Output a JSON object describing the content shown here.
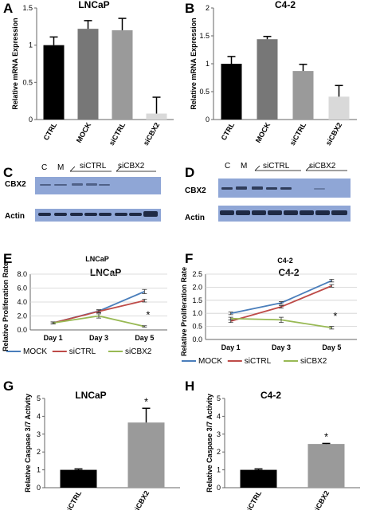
{
  "panel_labels": [
    "A",
    "B",
    "C",
    "D",
    "E",
    "F",
    "G",
    "H"
  ],
  "colors": {
    "black": "#000000",
    "dark_gray": "#777777",
    "mid_gray": "#9a9a9a",
    "light_gray": "#d9d9d9",
    "blot_bg": "#8fa6d6",
    "mock": "#4a7ebb",
    "sictrl": "#be4b48",
    "sicbx2": "#98b954"
  },
  "blots": {
    "C": {
      "lanes": [
        "C",
        "M",
        "siCTRL",
        "siCBX2"
      ],
      "rows": [
        "CBX2",
        "Actin"
      ]
    },
    "D": {
      "lanes": [
        "C",
        "M",
        "siCTRL",
        "siCBX2"
      ],
      "rows": [
        "CBX2",
        "Actin"
      ]
    }
  },
  "chart_data": [
    {
      "id": "A",
      "type": "bar",
      "title": "LNCaP",
      "ylabel": "Relative mRNA Expression",
      "categories": [
        "CTRL",
        "MOCK",
        "siCTRL",
        "siCBX2"
      ],
      "values": [
        1.0,
        1.22,
        1.2,
        0.08
      ],
      "errors": [
        0.11,
        0.11,
        0.16,
        0.22
      ],
      "ylim": [
        0,
        1.5
      ],
      "yticks": [
        "0",
        "0.5",
        "1",
        "1.5"
      ],
      "yticks_num": [
        0,
        0.5,
        1,
        1.5
      ],
      "bar_colors": [
        "#000000",
        "#777777",
        "#9a9a9a",
        "#d9d9d9"
      ]
    },
    {
      "id": "B",
      "type": "bar",
      "title": "C4-2",
      "ylabel": "Relative mRNA Expression",
      "categories": [
        "CTRL",
        "MOCK",
        "siCTRL",
        "siCBX2"
      ],
      "values": [
        1.0,
        1.44,
        0.87,
        0.41
      ],
      "errors": [
        0.13,
        0.05,
        0.12,
        0.2
      ],
      "ylim": [
        0,
        2
      ],
      "yticks": [
        "0",
        "0.5",
        "1",
        "1.5",
        "2"
      ],
      "yticks_num": [
        0,
        0.5,
        1,
        1.5,
        2
      ],
      "bar_colors": [
        "#000000",
        "#777777",
        "#9a9a9a",
        "#d9d9d9"
      ]
    },
    {
      "id": "E",
      "type": "line",
      "header": "LNCaP",
      "title": "LNCaP",
      "ylabel": "Relative Proliferation Rate",
      "x": [
        "Day 1",
        "Day 3",
        "Day 5"
      ],
      "series": [
        {
          "name": "MOCK",
          "values": [
            1.0,
            2.7,
            5.5
          ],
          "errors": [
            0.15,
            0.2,
            0.3
          ]
        },
        {
          "name": "siCTRL",
          "values": [
            1.0,
            2.65,
            4.2
          ],
          "errors": [
            0.15,
            0.2,
            0.2
          ]
        },
        {
          "name": "siCBX2",
          "values": [
            1.0,
            2.0,
            0.5
          ],
          "errors": [
            0.15,
            0.3,
            0.1
          ]
        }
      ],
      "ylim": [
        0,
        8
      ],
      "yticks": [
        "0.0",
        "2.0",
        "4.0",
        "6.0",
        "8.0"
      ],
      "yticks_num": [
        0,
        2,
        4,
        6,
        8
      ],
      "annotation": "*"
    },
    {
      "id": "F",
      "type": "line",
      "header": "C4-2",
      "title": "C4-2",
      "ylabel": "Relative Proliferation Rate",
      "x": [
        "Day 1",
        "Day 3",
        "Day 5"
      ],
      "series": [
        {
          "name": "MOCK",
          "values": [
            1.0,
            1.4,
            2.25
          ],
          "errors": [
            0.05,
            0.05,
            0.05
          ]
        },
        {
          "name": "siCTRL",
          "values": [
            0.7,
            1.25,
            2.05
          ],
          "errors": [
            0.05,
            0.05,
            0.05
          ]
        },
        {
          "name": "siCBX2",
          "values": [
            0.8,
            0.75,
            0.45
          ],
          "errors": [
            0.05,
            0.1,
            0.05
          ]
        }
      ],
      "ylim": [
        0,
        2.5
      ],
      "yticks": [
        "0.0",
        "0.5",
        "1.0",
        "1.5",
        "2.0",
        "2.5"
      ],
      "yticks_num": [
        0,
        0.5,
        1,
        1.5,
        2,
        2.5
      ],
      "annotation": "*"
    },
    {
      "id": "G",
      "type": "bar",
      "title": "LNCaP",
      "ylabel": "Relative Caspase 3/7 Activity",
      "categories": [
        "siCTRL",
        "siCBX2"
      ],
      "values": [
        1.0,
        3.65
      ],
      "errors": [
        0.05,
        0.8
      ],
      "ylim": [
        0,
        5
      ],
      "yticks": [
        "0",
        "1",
        "2",
        "3",
        "4",
        "5"
      ],
      "yticks_num": [
        0,
        1,
        2,
        3,
        4,
        5
      ],
      "bar_colors": [
        "#000000",
        "#9a9a9a"
      ],
      "annotation": "*"
    },
    {
      "id": "H",
      "type": "bar",
      "title": "C4-2",
      "ylabel": "Relative Caspase 3/7 Activity",
      "categories": [
        "siCTRL",
        "siCBX2"
      ],
      "values": [
        1.0,
        2.45
      ],
      "errors": [
        0.05,
        0.03
      ],
      "ylim": [
        0,
        5
      ],
      "yticks": [
        "0",
        "1",
        "2",
        "3",
        "4",
        "5"
      ],
      "yticks_num": [
        0,
        1,
        2,
        3,
        4,
        5
      ],
      "bar_colors": [
        "#000000",
        "#9a9a9a"
      ],
      "annotation": "*"
    }
  ]
}
